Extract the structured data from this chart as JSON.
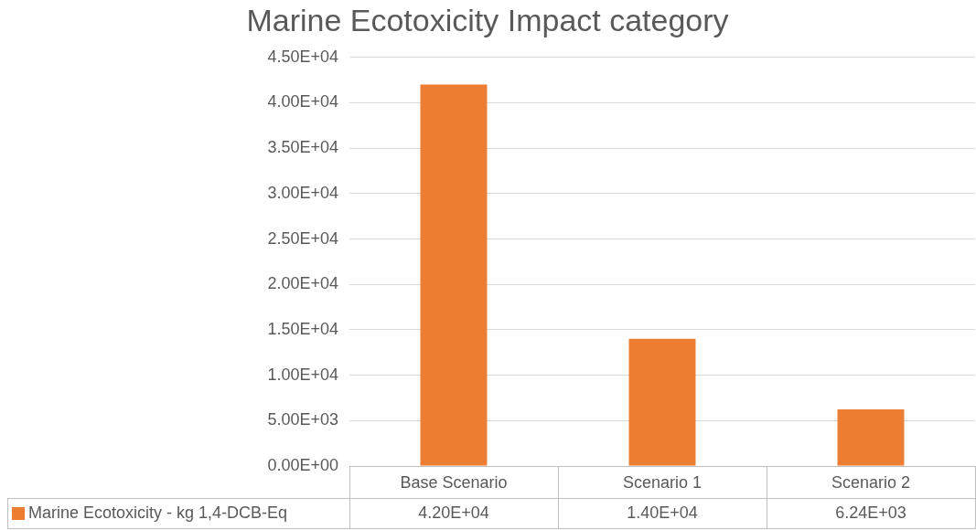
{
  "chart_data": {
    "type": "bar",
    "title": "Marine Ecotoxicity Impact category",
    "categories": [
      "Base Scenario",
      "Scenario 1",
      "Scenario 2"
    ],
    "series": [
      {
        "name": "Marine Ecotoxicity - kg 1,4-DCB-Eq",
        "color": "#ed7d31",
        "values": [
          42000,
          14000,
          6240
        ],
        "value_labels": [
          "4.20E+04",
          "1.40E+04",
          "6.24E+03"
        ]
      }
    ],
    "ylim": [
      0,
      45000
    ],
    "yticks": [
      {
        "value": 0,
        "label": "0.00E+00"
      },
      {
        "value": 5000,
        "label": "5.00E+03"
      },
      {
        "value": 10000,
        "label": "1.00E+04"
      },
      {
        "value": 15000,
        "label": "1.50E+04"
      },
      {
        "value": 20000,
        "label": "2.00E+04"
      },
      {
        "value": 25000,
        "label": "2.50E+04"
      },
      {
        "value": 30000,
        "label": "3.00E+04"
      },
      {
        "value": 35000,
        "label": "3.50E+04"
      },
      {
        "value": 40000,
        "label": "4.00E+04"
      },
      {
        "value": 45000,
        "label": "4.50E+04"
      }
    ],
    "grid": "y",
    "legend": "bottom"
  }
}
